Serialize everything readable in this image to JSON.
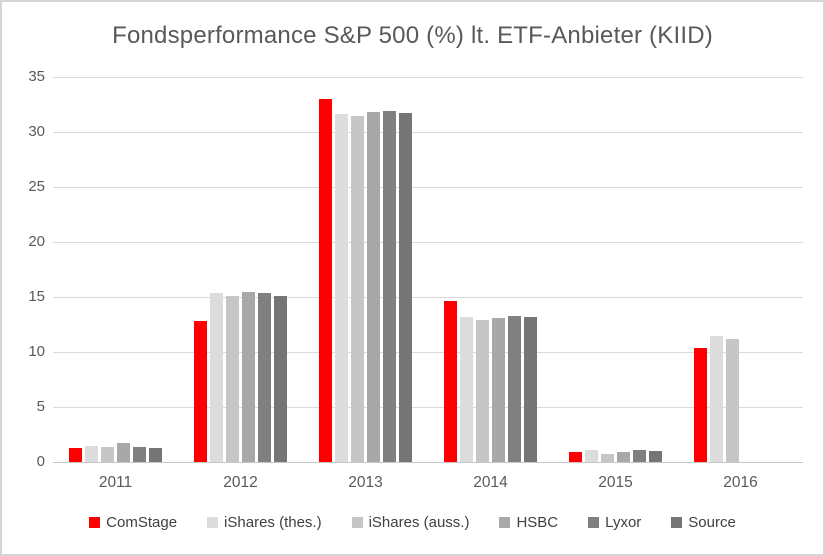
{
  "chart_data": {
    "type": "bar",
    "title": "Fondsperformance S&P 500 (%) lt. ETF-Anbieter (KIID)",
    "xlabel": "",
    "ylabel": "",
    "categories": [
      "2011",
      "2012",
      "2013",
      "2014",
      "2015",
      "2016"
    ],
    "series": [
      {
        "name": "ComStage",
        "color": "#fe0000",
        "values": [
          1.3,
          12.8,
          33.0,
          14.6,
          0.9,
          10.4
        ]
      },
      {
        "name": "iShares (thes.)",
        "color": "#dcdcdc",
        "values": [
          1.5,
          15.4,
          31.6,
          13.2,
          1.1,
          11.5
        ]
      },
      {
        "name": "iShares (auss.)",
        "color": "#c6c6c6",
        "values": [
          1.4,
          15.1,
          31.5,
          12.9,
          0.7,
          11.2
        ]
      },
      {
        "name": "HSBC",
        "color": "#a8a8a8",
        "values": [
          1.7,
          15.5,
          31.8,
          13.1,
          0.9,
          null
        ]
      },
      {
        "name": "Lyxor",
        "color": "#808080",
        "values": [
          1.4,
          15.4,
          31.9,
          13.3,
          1.1,
          null
        ]
      },
      {
        "name": "Source",
        "color": "#757575",
        "values": [
          1.3,
          15.1,
          31.7,
          13.2,
          1.0,
          null
        ]
      }
    ],
    "ylim": [
      0,
      35
    ],
    "yticks": [
      0,
      5,
      10,
      15,
      20,
      25,
      30,
      35
    ],
    "grid": true,
    "legend_position": "bottom",
    "gridline_color": "#d9d9d9",
    "text_color": "#595959"
  }
}
